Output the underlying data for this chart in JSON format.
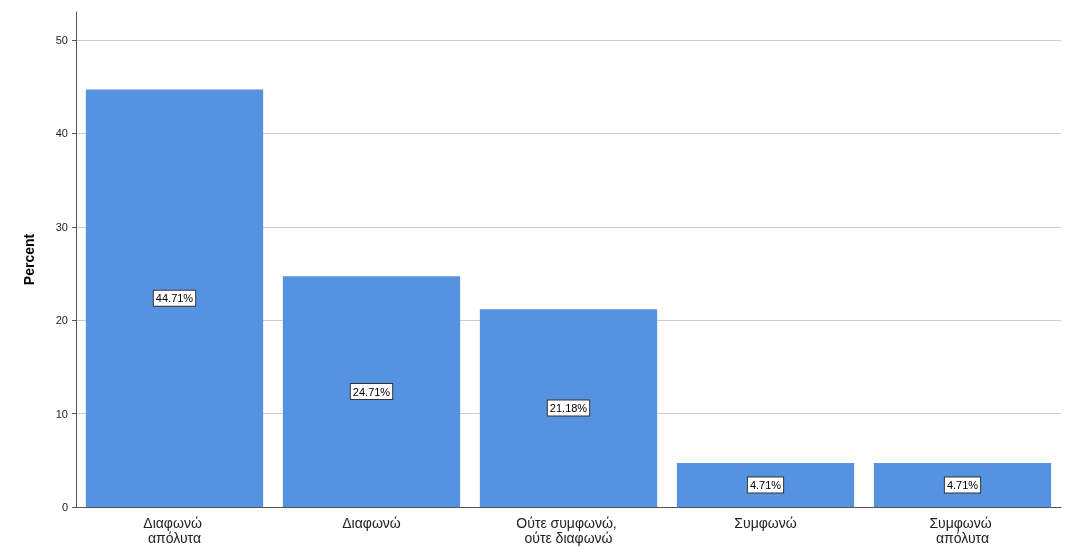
{
  "chart_data": {
    "type": "bar",
    "ylabel": "Percent",
    "categories": [
      "Διαφωνώ απόλυτα",
      "Διαφωνώ",
      "Ούτε συμφωνώ, ούτε διαφωνώ",
      "Συμφωνώ",
      "Συμφωνώ απόλυτα"
    ],
    "values": [
      44.71,
      24.71,
      21.18,
      4.71,
      4.71
    ],
    "value_labels": [
      "44.71%",
      "24.71%",
      "21.18%",
      "4.71%",
      "4.71%"
    ],
    "color": "#5592e0",
    "ylim": [
      0,
      53
    ],
    "yticks": [
      0,
      10,
      20,
      30,
      40,
      50
    ],
    "grid": "y"
  }
}
